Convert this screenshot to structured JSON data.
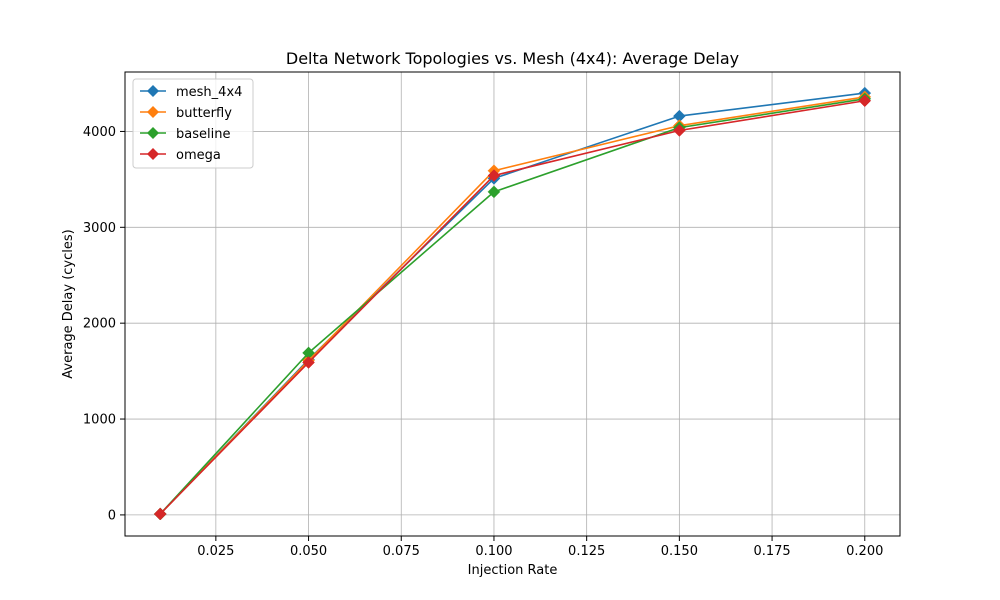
{
  "chart_data": {
    "type": "line",
    "title": "Delta Network Topologies vs. Mesh (4x4): Average Delay",
    "xlabel": "Injection Rate",
    "ylabel": "Average Delay (cycles)",
    "x": [
      0.01,
      0.05,
      0.1,
      0.15,
      0.2
    ],
    "xlim": [
      0.0005,
      0.2095
    ],
    "ylim": [
      -220,
      4620
    ],
    "xticks": [
      0.025,
      0.05,
      0.075,
      0.1,
      0.125,
      0.15,
      0.175,
      0.2
    ],
    "xtick_labels": [
      "0.025",
      "0.050",
      "0.075",
      "0.100",
      "0.125",
      "0.150",
      "0.175",
      "0.200"
    ],
    "yticks": [
      0,
      1000,
      2000,
      3000,
      4000
    ],
    "ytick_labels": [
      "0",
      "1000",
      "2000",
      "3000",
      "4000"
    ],
    "grid": true,
    "legend_position": "top-left",
    "marker": "diamond",
    "series": [
      {
        "name": "mesh_4x4",
        "color": "#1f77b4",
        "values": [
          10,
          1620,
          3510,
          4160,
          4400
        ]
      },
      {
        "name": "butterfly",
        "color": "#ff7f0e",
        "values": [
          10,
          1610,
          3590,
          4060,
          4360
        ]
      },
      {
        "name": "baseline",
        "color": "#2ca02c",
        "values": [
          10,
          1690,
          3370,
          4040,
          4340
        ]
      },
      {
        "name": "omega",
        "color": "#d62728",
        "values": [
          10,
          1590,
          3540,
          4010,
          4320
        ]
      }
    ]
  }
}
